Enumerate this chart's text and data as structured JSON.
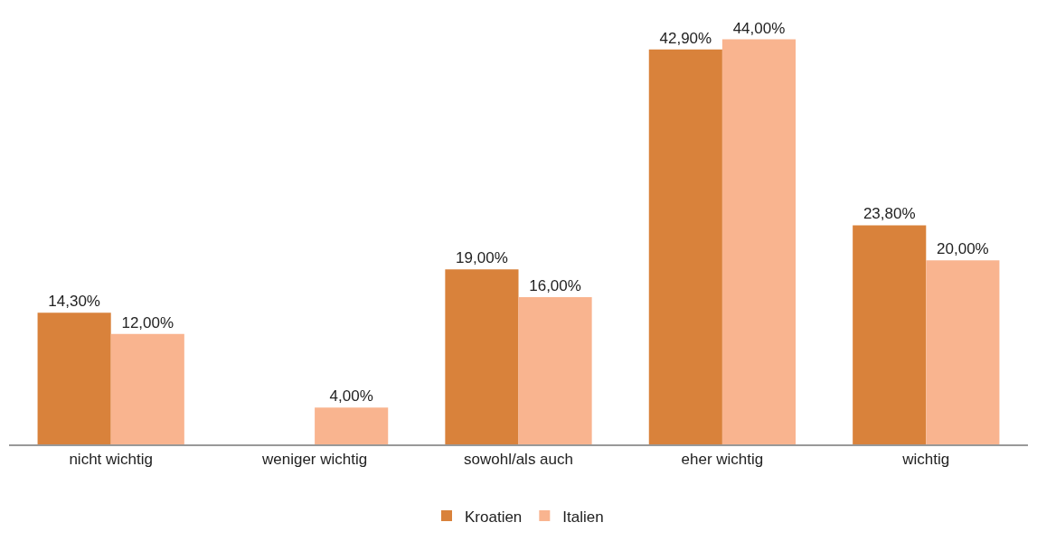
{
  "chart_data": {
    "type": "bar",
    "categories": [
      "nicht wichtig",
      "weniger wichtig",
      "sowohl/als auch",
      "eher wichtig",
      "wichtig"
    ],
    "series": [
      {
        "name": "Kroatien",
        "color": "#d9823b",
        "values": [
          14.3,
          null,
          19.0,
          42.9,
          23.8
        ],
        "value_labels": [
          "14,30%",
          null,
          "19,00%",
          "42,90%",
          "23,80%"
        ]
      },
      {
        "name": "Italien",
        "color": "#f9b48f",
        "values": [
          12.0,
          4.0,
          16.0,
          44.0,
          20.0
        ],
        "value_labels": [
          "12,00%",
          "4,00%",
          "16,00%",
          "44,00%",
          "20,00%"
        ]
      }
    ],
    "legend": "bottom",
    "tick_labels": "x"
  }
}
